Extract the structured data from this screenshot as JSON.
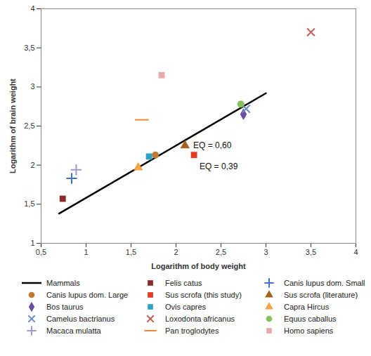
{
  "chart_data": {
    "type": "scatter",
    "x_label": "Logarithm of body weight",
    "y_label": "Logarithm of brain weight",
    "xlim": [
      0.5,
      4
    ],
    "ylim": [
      1,
      4
    ],
    "xticks": [
      {
        "value": 0.5,
        "label": "0,5"
      },
      1,
      {
        "value": 1.5,
        "label": "1,5"
      },
      2,
      {
        "value": 2.5,
        "label": "2,5"
      },
      3,
      {
        "value": 3.5,
        "label": "3,5"
      },
      4
    ],
    "yticks": [
      1,
      {
        "value": 1.5,
        "label": "1,5"
      },
      2,
      {
        "value": 2.5,
        "label": "2,5"
      },
      3,
      {
        "value": 3.5,
        "label": "3,5"
      },
      4
    ],
    "grid": false,
    "legend": "bottom",
    "series": [
      {
        "name": "Mammals",
        "type": "line",
        "line_style": "solid",
        "color": "#000000",
        "x": [
          0.7,
          3.0
        ],
        "y": [
          1.38,
          2.92
        ]
      },
      {
        "name": "Felis catus",
        "marker": "square",
        "color": "#8b2a2a",
        "x": [
          0.74
        ],
        "y": [
          1.57
        ]
      },
      {
        "name": "Canis lupus dom. Small",
        "marker": "plus",
        "color": "#4472c4",
        "x": [
          0.84
        ],
        "y": [
          1.83
        ]
      },
      {
        "name": "Canis lupus dom. Large",
        "marker": "circle",
        "color": "#c27a32",
        "x": [
          1.77
        ],
        "y": [
          2.13
        ]
      },
      {
        "name": "Sus scrofa (this study)",
        "marker": "square",
        "color": "#e33b24",
        "x": [
          2.2
        ],
        "y": [
          2.13
        ]
      },
      {
        "name": "Sus scrofa (literature)",
        "marker": "triangle",
        "color": "#a0621c",
        "x": [
          2.1
        ],
        "y": [
          2.25
        ]
      },
      {
        "name": "Bos taurus",
        "marker": "diamond",
        "color": "#6a4fa0",
        "x": [
          2.75
        ],
        "y": [
          2.65
        ]
      },
      {
        "name": "Ovis capres",
        "marker": "square",
        "color": "#2fa3c4",
        "x": [
          1.7
        ],
        "y": [
          2.11
        ]
      },
      {
        "name": "Capra Hircus",
        "marker": "triangle",
        "color": "#f2a545",
        "x": [
          1.58
        ],
        "y": [
          1.97
        ]
      },
      {
        "name": "Camelus bactrianus",
        "marker": "times",
        "color": "#6b8fcc",
        "x": [
          2.78
        ],
        "y": [
          2.72
        ]
      },
      {
        "name": "Loxodonta africanus",
        "marker": "times",
        "color": "#c0605c",
        "x": [
          3.5
        ],
        "y": [
          3.7
        ]
      },
      {
        "name": "Equus caballus",
        "marker": "circle",
        "color": "#86c25e",
        "x": [
          2.72
        ],
        "y": [
          2.78
        ]
      },
      {
        "name": "Macaca mulatta",
        "marker": "plus",
        "color": "#9b9bd2",
        "x": [
          0.89
        ],
        "y": [
          1.94
        ]
      },
      {
        "name": "Pan troglodytes",
        "marker": "dash",
        "color": "#f28535",
        "x": [
          1.62
        ],
        "y": [
          2.58
        ]
      },
      {
        "name": "Homo sapiens",
        "marker": "square",
        "color": "#e6aaaa",
        "x": [
          1.84
        ],
        "y": [
          3.15
        ]
      }
    ],
    "annotations": [
      {
        "text": "EQ = 0,60",
        "x": 2.16,
        "y": 2.25
      },
      {
        "text": "EQ = 0,39",
        "x": 2.23,
        "y": 1.98
      }
    ]
  }
}
